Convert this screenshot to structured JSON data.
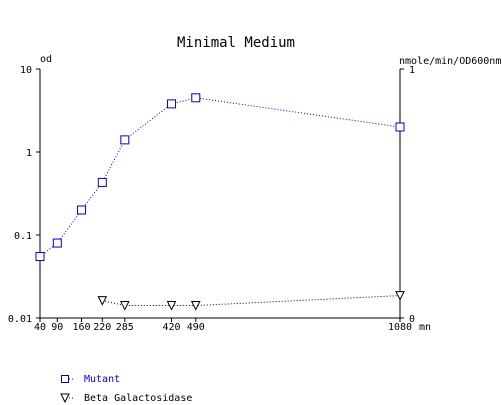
{
  "chart_data": {
    "type": "line",
    "title": "Minimal Medium",
    "left_axis_label": "od",
    "right_axis_label": "nmole/min/OD600nm",
    "x_unit_label": "mn",
    "x": [
      40,
      90,
      160,
      220,
      285,
      420,
      490,
      1080
    ],
    "x_tick_labels": [
      "40",
      "90",
      "160",
      "220",
      "285",
      "420",
      "490",
      "1080"
    ],
    "xlim": [
      40,
      1080
    ],
    "y_left": {
      "scale": "log",
      "ylim": [
        0.01,
        10
      ],
      "tick_values": [
        0.01,
        0.1,
        1,
        10
      ],
      "tick_labels": [
        "0.01",
        "0.1",
        "1",
        "10"
      ]
    },
    "y_right": {
      "scale": "linear",
      "ylim": [
        0,
        1
      ],
      "tick_values": [
        0,
        1
      ],
      "tick_labels": [
        "0",
        "1"
      ]
    },
    "series": [
      {
        "name": "Mutant",
        "axis": "left",
        "marker": "square",
        "color": "#0000cc",
        "line": "dotted",
        "points": [
          [
            40,
            0.055
          ],
          [
            90,
            0.08
          ],
          [
            160,
            0.2
          ],
          [
            220,
            0.43
          ],
          [
            285,
            1.4
          ],
          [
            420,
            3.8
          ],
          [
            490,
            4.5
          ],
          [
            1080,
            2.0
          ]
        ]
      },
      {
        "name": "Beta Galactosidase",
        "axis": "right",
        "marker": "triangle-down",
        "color": "#000000",
        "line": "dotted",
        "points": [
          [
            220,
            0.07
          ],
          [
            285,
            0.05
          ],
          [
            420,
            0.05
          ],
          [
            490,
            0.05
          ],
          [
            1080,
            0.09
          ]
        ]
      }
    ],
    "legend_placement": "bottom-left",
    "grid": false
  }
}
